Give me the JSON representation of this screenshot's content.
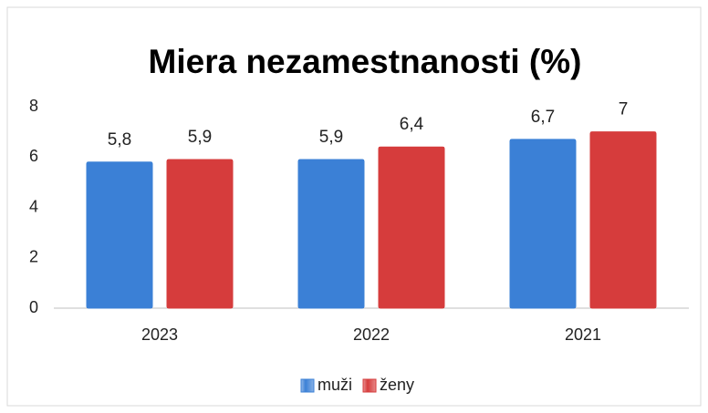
{
  "chart_data": {
    "type": "bar",
    "title": "Miera nezamestnanosti (%)",
    "categories": [
      "2023",
      "2022",
      "2021"
    ],
    "series": [
      {
        "name": "muži",
        "color": "#3b80d6",
        "values": [
          5.8,
          5.9,
          6.7
        ],
        "value_labels": [
          "5,8",
          "5,9",
          "6,7"
        ]
      },
      {
        "name": "ženy",
        "color": "#d63c3c",
        "values": [
          5.9,
          6.4,
          7
        ],
        "value_labels": [
          "5,9",
          "6,4",
          "7"
        ]
      }
    ],
    "ylim": [
      0,
      8
    ],
    "yticks": [
      0,
      2,
      4,
      6,
      8
    ],
    "grid": false,
    "legend": "bottom"
  }
}
